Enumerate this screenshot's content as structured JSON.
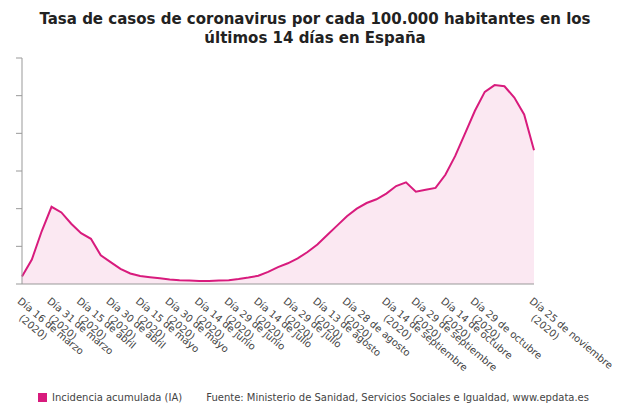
{
  "chart_data": {
    "type": "area",
    "title": "Tasa de casos de coronavirus por cada 100.000 habitantes en los últimos 14 días en España",
    "source": "Fuente: Ministerio de Sanidad, Servicios Sociales e Igualdad, www.epdata.es",
    "categories": [
      "Día 16 de marzo (2020)",
      null,
      null,
      "Día 31 de marzo (2020)",
      null,
      null,
      "Día 15 de abril (2020)",
      null,
      null,
      "Día 30 de abril (2020)",
      null,
      null,
      "Día 15 de mayo (2020)",
      null,
      null,
      "Día 30 de mayo (2020)",
      null,
      null,
      "Día 14 de junio (2020)",
      null,
      null,
      "Día 29 de junio (2020)",
      null,
      null,
      "Día 14 de julio (2020)",
      null,
      null,
      "Día 29 de julio (2020)",
      null,
      null,
      "Día 13 de agosto (2020)",
      null,
      null,
      "Día 28 de agosto (2020)",
      null,
      null,
      null,
      "Día 14 de septiembre (2020)",
      null,
      null,
      "Día 29 de septiembre (2020)",
      null,
      null,
      "Día 14 de octubre (2020)",
      null,
      null,
      "Día 29 de octubre (2020)",
      null,
      null,
      null,
      null,
      null,
      "Día 25 de noviembre (2020)"
    ],
    "series": [
      {
        "name": "Incidencia acumulada (IA)",
        "color": "#d81b7d",
        "values": [
          20,
          65,
          140,
          205,
          190,
          160,
          135,
          120,
          76,
          58,
          40,
          28,
          21,
          18,
          15,
          12,
          10,
          9,
          8,
          8,
          9,
          10,
          13,
          17,
          22,
          32,
          45,
          55,
          68,
          85,
          105,
          130,
          155,
          180,
          200,
          215,
          225,
          240,
          260,
          270,
          245,
          250,
          255,
          290,
          340,
          400,
          460,
          510,
          528,
          525,
          495,
          450,
          355
        ]
      }
    ],
    "ylim": [
      0,
      600
    ],
    "yticks": [
      0,
      50,
      100,
      150,
      200,
      250,
      300,
      350,
      400,
      450,
      500,
      550,
      600
    ],
    "tick_labels": "x",
    "grid": false,
    "legend": "bottom-left"
  }
}
